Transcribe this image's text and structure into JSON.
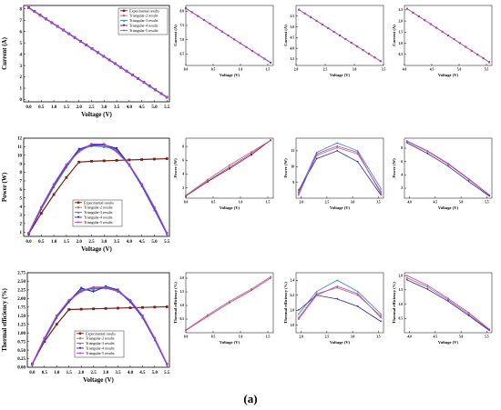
{
  "caption": "(a)",
  "colors": {
    "exp": "#7a1e14",
    "t2": "#b86a62",
    "t3": "#2f7fcf",
    "t4": "#2a2aa6",
    "t5": "#b040d8",
    "extra": "#1c1c1c"
  },
  "legend_labels": [
    "Experimental results",
    "Triangular-2 results",
    "Triangular-3 results",
    "Triangular-4 results",
    "Triangular-5 results"
  ],
  "chart_data": [
    {
      "id": "current-main",
      "type": "line",
      "xlabel": "Voltage (V)",
      "ylabel": "Current (A)",
      "xlim": [
        -0.2,
        5.6
      ],
      "ylim": [
        -0.2,
        8.3
      ],
      "xticks": [
        "0.0",
        "0.5",
        "1.0",
        "1.5",
        "2.0",
        "2.5",
        "3.0",
        "3.5",
        "4.0",
        "4.5",
        "5.0",
        "5.5"
      ],
      "yticks": [
        "0",
        "1",
        "2",
        "3",
        "4",
        "5",
        "6",
        "7",
        "8"
      ],
      "legend": "top-right",
      "series": [
        {
          "name": "Experimental results",
          "x": [
            0,
            5.5
          ],
          "y": [
            8.1,
            0.2
          ]
        },
        {
          "name": "Triangular-2 results",
          "x": [
            0,
            5.5
          ],
          "y": [
            8.1,
            0.2
          ]
        },
        {
          "name": "Triangular-3 results",
          "x": [
            0,
            5.5
          ],
          "y": [
            8.1,
            0.2
          ]
        },
        {
          "name": "Triangular-4 results",
          "x": [
            0,
            5.5
          ],
          "y": [
            8.1,
            0.2
          ]
        },
        {
          "name": "Triangular-5 results",
          "x": [
            0,
            5.5
          ],
          "y": [
            8.1,
            0.2
          ]
        }
      ]
    },
    {
      "id": "power-main",
      "type": "line",
      "xlabel": "Voltage (V)",
      "ylabel": "Power (W)",
      "xlim": [
        -0.2,
        5.6
      ],
      "ylim": [
        0.5,
        12
      ],
      "xticks": [
        "0.0",
        "0.5",
        "1.0",
        "1.5",
        "2.0",
        "2.5",
        "3.0",
        "3.5",
        "4.0",
        "4.5",
        "5.0",
        "5.5"
      ],
      "yticks": [
        "1",
        "2",
        "3",
        "4",
        "5",
        "6",
        "7",
        "8",
        "9",
        "10",
        "11",
        "12"
      ],
      "legend": "bottom-center",
      "series": [
        {
          "name": "Experimental results",
          "x": [
            0,
            0.5,
            1.0,
            1.5,
            2.0,
            2.5,
            3.0,
            3.5,
            4.0,
            4.5,
            5.0,
            5.5
          ],
          "y": [
            0.8,
            3.2,
            5.4,
            7.4,
            9.2,
            9.3,
            9.35,
            9.4,
            9.45,
            9.5,
            9.55,
            9.6
          ]
        },
        {
          "name": "Triangular-2 results",
          "x": [
            0,
            0.5,
            1.0,
            1.5,
            2.0,
            2.5,
            3.0,
            3.5,
            4.0,
            4.5,
            5.0,
            5.5
          ],
          "y": [
            0.9,
            3.9,
            6.6,
            8.9,
            10.5,
            11.3,
            11.3,
            10.5,
            8.9,
            6.6,
            3.9,
            0.9
          ]
        },
        {
          "name": "Triangular-3 results",
          "x": [
            0,
            0.5,
            1.0,
            1.5,
            2.0,
            2.5,
            3.0,
            3.5,
            4.0,
            4.5,
            5.0,
            5.5
          ],
          "y": [
            0.8,
            3.7,
            6.3,
            8.6,
            10.6,
            11.1,
            11.0,
            10.7,
            8.8,
            6.4,
            3.6,
            0.8
          ]
        },
        {
          "name": "Triangular-4 results",
          "x": [
            0,
            0.5,
            1.0,
            1.5,
            2.0,
            2.5,
            3.0,
            3.5,
            4.0,
            4.5,
            5.0,
            5.5
          ],
          "y": [
            0.8,
            3.8,
            6.5,
            8.8,
            10.7,
            11.2,
            11.2,
            10.8,
            8.9,
            6.5,
            3.8,
            0.8
          ]
        },
        {
          "name": "Triangular-5 results",
          "x": [
            0,
            0.5,
            1.0,
            1.5,
            2.0,
            2.5,
            3.0,
            3.5,
            4.0,
            4.5,
            5.0,
            5.5
          ],
          "y": [
            0.9,
            3.9,
            6.6,
            8.9,
            10.4,
            11.3,
            11.3,
            10.4,
            8.9,
            6.6,
            3.9,
            0.9
          ]
        }
      ]
    },
    {
      "id": "eff-main",
      "type": "line",
      "xlabel": "Voltage (V)",
      "ylabel": "Thermal efficiency (%)",
      "xlim": [
        -0.2,
        5.6
      ],
      "ylim": [
        0,
        2.75
      ],
      "xticks": [
        "0.0",
        "0.5",
        "1.0",
        "1.5",
        "2.0",
        "2.5",
        "3.0",
        "3.5",
        "4.0",
        "4.5",
        "5.0",
        "5.5"
      ],
      "yticks": [
        "0.00",
        "0.25",
        "0.50",
        "0.75",
        "1.00",
        "1.25",
        "1.50",
        "1.75",
        "2.00",
        "2.25",
        "2.50",
        "2.75"
      ],
      "legend": "bottom-center",
      "series": [
        {
          "name": "Experimental results",
          "x": [
            0,
            0.5,
            1.0,
            1.5,
            2.0,
            2.5,
            3.0,
            3.5,
            4.0,
            4.5,
            5.0,
            5.5
          ],
          "y": [
            0.1,
            0.75,
            1.25,
            1.68,
            1.69,
            1.7,
            1.71,
            1.72,
            1.73,
            1.74,
            1.75,
            1.76
          ]
        },
        {
          "name": "Triangular-2 results",
          "x": [
            0,
            0.5,
            1.0,
            1.5,
            2.0,
            2.5,
            3.0,
            3.5,
            4.0,
            4.5,
            5.0,
            5.5
          ],
          "y": [
            0.1,
            0.85,
            1.5,
            1.95,
            2.2,
            2.32,
            2.32,
            2.2,
            1.95,
            1.5,
            0.85,
            0.1
          ]
        },
        {
          "name": "Triangular-3 results",
          "x": [
            0,
            0.5,
            1.0,
            1.5,
            2.0,
            2.5,
            3.0,
            3.5,
            4.0,
            4.5,
            5.0,
            5.5
          ],
          "y": [
            0.08,
            0.8,
            1.45,
            1.9,
            2.25,
            2.28,
            2.3,
            2.22,
            1.9,
            1.45,
            0.8,
            0.08
          ]
        },
        {
          "name": "Triangular-4 results",
          "x": [
            0,
            0.5,
            1.0,
            1.5,
            2.0,
            2.5,
            3.0,
            3.5,
            4.0,
            4.5,
            5.0,
            5.5
          ],
          "y": [
            0.09,
            0.82,
            1.48,
            1.92,
            2.3,
            2.2,
            2.35,
            2.25,
            1.92,
            1.48,
            0.82,
            0.09
          ]
        },
        {
          "name": "Triangular-5 results",
          "x": [
            0,
            0.5,
            1.0,
            1.5,
            2.0,
            2.5,
            3.0,
            3.5,
            4.0,
            4.5,
            5.0,
            5.5
          ],
          "y": [
            0.1,
            0.84,
            1.5,
            1.95,
            2.22,
            2.33,
            2.33,
            2.22,
            1.95,
            1.5,
            0.84,
            0.1
          ]
        }
      ]
    },
    {
      "id": "current-z1",
      "type": "line",
      "xlabel": "Voltage (V)",
      "ylabel": "Current (A)",
      "xlim": [
        0,
        1.6
      ],
      "ylim": [
        6.1,
        8.2
      ],
      "xticks": [
        "0.0",
        "0.5",
        "1.0",
        "1.5"
      ],
      "yticks": [
        "6.5",
        "7.0",
        "7.5",
        "8.0"
      ],
      "series": [
        {
          "name": "Experimental results",
          "x": [
            0,
            1.55
          ],
          "y": [
            8.1,
            6.2
          ]
        },
        {
          "name": "Triangular-5 results",
          "x": [
            0,
            1.55
          ],
          "y": [
            8.1,
            6.2
          ]
        }
      ]
    },
    {
      "id": "current-z2",
      "type": "line",
      "xlabel": "Voltage (V)",
      "ylabel": "Current (A)",
      "xlim": [
        2.0,
        3.5
      ],
      "ylim": [
        3.2,
        6.0
      ],
      "xticks": [
        "2.0",
        "2.5",
        "3.0",
        "3.5"
      ],
      "yticks": [
        "3.5",
        "4.0",
        "4.5",
        "5.0",
        "5.5"
      ],
      "series": [
        {
          "name": "Experimental results",
          "x": [
            2.05,
            3.45
          ],
          "y": [
            5.8,
            3.4
          ]
        },
        {
          "name": "Triangular-5 results",
          "x": [
            2.05,
            3.45
          ],
          "y": [
            5.8,
            3.4
          ]
        }
      ]
    },
    {
      "id": "current-z3",
      "type": "line",
      "xlabel": "Voltage (V)",
      "ylabel": "Current (A)",
      "xlim": [
        4.0,
        5.6
      ],
      "ylim": [
        0,
        2.7
      ],
      "xticks": [
        "4.0",
        "4.5",
        "5.0",
        "5.5"
      ],
      "yticks": [
        "0.5",
        "1.0",
        "1.5",
        "2.0",
        "2.5"
      ],
      "series": [
        {
          "name": "Experimental results",
          "x": [
            4.05,
            5.55
          ],
          "y": [
            2.55,
            0.15
          ]
        },
        {
          "name": "Triangular-5 results",
          "x": [
            4.05,
            5.55
          ],
          "y": [
            2.55,
            0.15
          ]
        }
      ]
    },
    {
      "id": "power-z1",
      "type": "line",
      "xlabel": "Voltage (V)",
      "ylabel": "Power (W)",
      "xlim": [
        0,
        1.6
      ],
      "ylim": [
        0.5,
        9.2
      ],
      "xticks": [
        "0.0",
        "0.5",
        "1.0",
        "1.5"
      ],
      "yticks": [
        "2",
        "4",
        "6",
        "8"
      ],
      "series": [
        {
          "name": "Experimental results",
          "x": [
            0,
            0.4,
            0.8,
            1.2,
            1.55
          ],
          "y": [
            0.8,
            2.9,
            4.8,
            6.8,
            8.9
          ]
        },
        {
          "name": "Triangular-2 results",
          "x": [
            0,
            0.4,
            0.8,
            1.2,
            1.55
          ],
          "y": [
            0.9,
            3.2,
            5.3,
            7.2,
            8.9
          ]
        },
        {
          "name": "Triangular-5 results",
          "x": [
            0,
            0.4,
            0.8,
            1.2,
            1.55
          ],
          "y": [
            0.85,
            3.0,
            5.0,
            7.0,
            8.9
          ]
        }
      ]
    },
    {
      "id": "power-z2",
      "type": "line",
      "xlabel": "Voltage (V)",
      "ylabel": "Power (W)",
      "xlim": [
        1.9,
        3.6
      ],
      "ylim": [
        8.0,
        11.8
      ],
      "xticks": [
        "2.0",
        "2.5",
        "3.0",
        "3.5"
      ],
      "yticks": [
        "9",
        "10",
        "11"
      ],
      "series": [
        {
          "name": "Triangular-2 results",
          "x": [
            1.95,
            2.3,
            2.7,
            3.1,
            3.55
          ],
          "y": [
            8.3,
            10.7,
            11.2,
            10.8,
            8.4
          ]
        },
        {
          "name": "Triangular-3 results",
          "x": [
            1.95,
            2.3,
            2.7,
            3.1,
            3.55
          ],
          "y": [
            8.4,
            10.9,
            11.5,
            11.0,
            8.6
          ]
        },
        {
          "name": "Triangular-4 results",
          "x": [
            1.95,
            2.3,
            2.7,
            3.1,
            3.55
          ],
          "y": [
            8.5,
            10.5,
            11.0,
            10.3,
            8.2
          ]
        },
        {
          "name": "Triangular-5 results",
          "x": [
            1.95,
            2.3,
            2.7,
            3.1,
            3.55
          ],
          "y": [
            8.2,
            10.8,
            11.3,
            10.9,
            8.3
          ]
        }
      ]
    },
    {
      "id": "power-z3",
      "type": "line",
      "xlabel": "Voltage (V)",
      "ylabel": "Power (W)",
      "xlim": [
        3.9,
        5.6
      ],
      "ylim": [
        0.5,
        9.5
      ],
      "xticks": [
        "4.0",
        "4.5",
        "5.0",
        "5.5"
      ],
      "yticks": [
        "2",
        "4",
        "6",
        "8"
      ],
      "series": [
        {
          "name": "Triangular-2 results",
          "x": [
            3.95,
            4.35,
            4.75,
            5.15,
            5.55
          ],
          "y": [
            9.0,
            7.5,
            5.6,
            3.3,
            0.9
          ]
        },
        {
          "name": "Triangular-4 results",
          "x": [
            3.95,
            4.35,
            4.75,
            5.15,
            5.55
          ],
          "y": [
            8.8,
            7.2,
            5.3,
            3.0,
            0.8
          ]
        },
        {
          "name": "Triangular-5 results",
          "x": [
            3.95,
            4.35,
            4.75,
            5.15,
            5.55
          ],
          "y": [
            9.1,
            7.6,
            5.7,
            3.4,
            1.0
          ]
        }
      ]
    },
    {
      "id": "eff-z1",
      "type": "line",
      "xlabel": "Voltage (V)",
      "ylabel": "Thermal efficiency (%)",
      "xlim": [
        0,
        1.6
      ],
      "ylim": [
        0,
        2.2
      ],
      "xticks": [
        "0.0",
        "0.5",
        "1.0",
        "1.5"
      ],
      "yticks": [
        "0.5",
        "1.0",
        "1.5",
        "2.0"
      ],
      "series": [
        {
          "name": "Triangular-2 results",
          "x": [
            0,
            0.4,
            0.8,
            1.2,
            1.55
          ],
          "y": [
            0.1,
            0.65,
            1.15,
            1.6,
            2.05
          ]
        },
        {
          "name": "Triangular-5 results",
          "x": [
            0,
            0.4,
            0.8,
            1.2,
            1.55
          ],
          "y": [
            0.08,
            0.6,
            1.1,
            1.55,
            2.0
          ]
        }
      ]
    },
    {
      "id": "eff-z2",
      "type": "line",
      "xlabel": "Voltage (V)",
      "ylabel": "Thermal efficiency (%)",
      "xlim": [
        1.9,
        3.6
      ],
      "ylim": [
        1.7,
        2.5
      ],
      "xticks": [
        "2.0",
        "2.5",
        "3.0",
        "3.5"
      ],
      "yticks": [
        "1.8",
        "2.0",
        "2.2",
        "2.4"
      ],
      "series": [
        {
          "name": "Triangular-2 results",
          "x": [
            1.95,
            2.3,
            2.7,
            3.1,
            3.55
          ],
          "y": [
            1.9,
            2.22,
            2.3,
            2.2,
            1.92
          ]
        },
        {
          "name": "Triangular-3 results",
          "x": [
            1.95,
            2.3,
            2.7,
            3.1,
            3.55
          ],
          "y": [
            1.95,
            2.25,
            2.4,
            2.25,
            1.95
          ]
        },
        {
          "name": "Triangular-4 results",
          "x": [
            1.95,
            2.3,
            2.7,
            3.1,
            3.55
          ],
          "y": [
            2.0,
            2.2,
            2.15,
            2.05,
            1.85
          ]
        },
        {
          "name": "Triangular-5 results",
          "x": [
            1.95,
            2.3,
            2.7,
            3.1,
            3.55
          ],
          "y": [
            1.88,
            2.2,
            2.32,
            2.22,
            1.9
          ]
        }
      ]
    },
    {
      "id": "eff-z3",
      "type": "line",
      "xlabel": "Voltage (V)",
      "ylabel": "Thermal efficiency (%)",
      "xlim": [
        3.9,
        5.6
      ],
      "ylim": [
        0,
        2.1
      ],
      "xticks": [
        "4.0",
        "4.5",
        "5.0",
        "5.5"
      ],
      "yticks": [
        "0.5",
        "1.0",
        "1.5",
        "2.0"
      ],
      "series": [
        {
          "name": "Triangular-2 results",
          "x": [
            3.95,
            4.35,
            4.75,
            5.15,
            5.55
          ],
          "y": [
            1.92,
            1.6,
            1.15,
            0.65,
            0.1
          ]
        },
        {
          "name": "Triangular-4 results",
          "x": [
            3.95,
            4.35,
            4.75,
            5.15,
            5.55
          ],
          "y": [
            1.85,
            1.52,
            1.1,
            0.6,
            0.08
          ]
        },
        {
          "name": "Triangular-5 results",
          "x": [
            3.95,
            4.35,
            4.75,
            5.15,
            5.55
          ],
          "y": [
            2.0,
            1.66,
            1.2,
            0.7,
            0.12
          ]
        }
      ]
    }
  ]
}
